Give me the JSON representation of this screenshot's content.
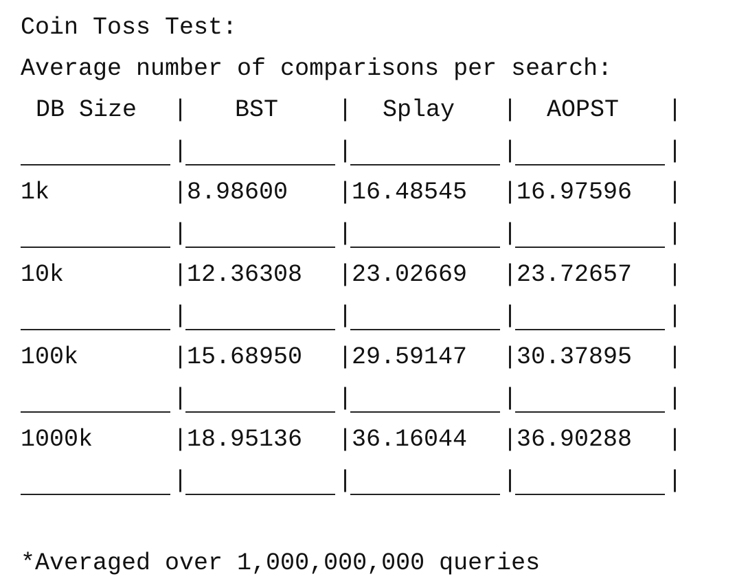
{
  "title": "Coin Toss Test:",
  "subtitle": "Average number of comparisons per search:",
  "footnote": "*Averaged over 1,000,000,000 queries",
  "separator": "|",
  "table": {
    "headers": [
      "DB Size",
      "BST",
      "Splay",
      "AOPST"
    ],
    "rows": [
      [
        "1k",
        "8.98600",
        "16.48545",
        "16.97596"
      ],
      [
        "10k",
        "12.36308",
        "23.02669",
        "23.72657"
      ],
      [
        "100k",
        "15.68950",
        "29.59147",
        "30.37895"
      ],
      [
        "1000k",
        "18.95136",
        "36.16044",
        "36.90288"
      ]
    ]
  }
}
